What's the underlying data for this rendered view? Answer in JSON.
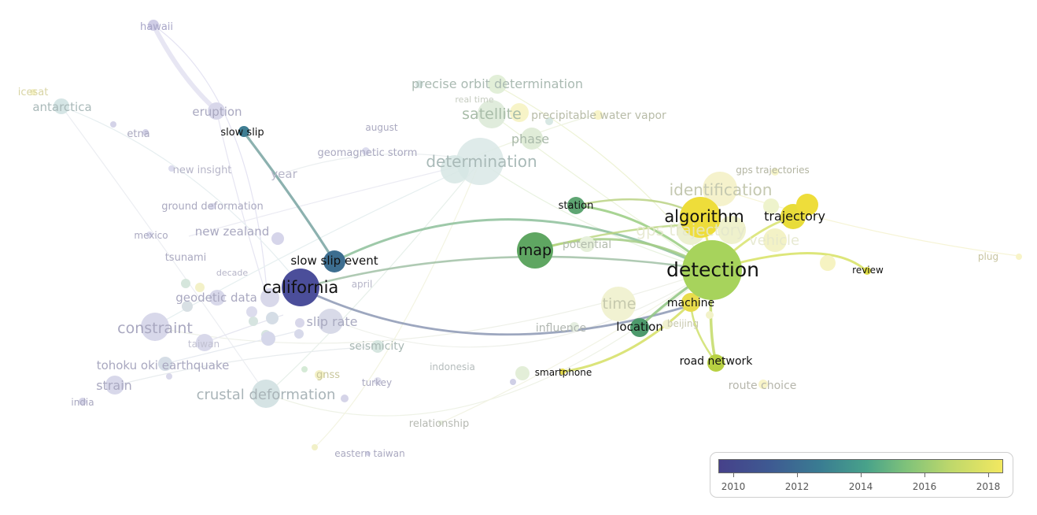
{
  "legend": {
    "ticks": [
      "2010",
      "2012",
      "2014",
      "2016",
      "2018"
    ]
  },
  "nodes": {
    "hawaii": "hawaii",
    "icesat": "icesat",
    "antarctica": "antarctica",
    "eruption": "eruption",
    "slow_slip": "slow slip",
    "etna": "etna",
    "new_insight": "new insight",
    "year": "year",
    "ground_deformation": "ground deformation",
    "new_zealand": "new zealand",
    "mexico": "mexico",
    "tsunami": "tsunami",
    "decade": "decade",
    "slow_slip_event": "slow slip event",
    "california": "california",
    "april": "april",
    "geodetic_data": "geodetic data",
    "constraint": "constraint",
    "slip_rate": "slip rate",
    "taiwan": "taiwan",
    "tohoku_oki_earthquake": "tohoku oki earthquake",
    "strain": "strain",
    "india": "india",
    "crustal_deformation": "crustal deformation",
    "gnss": "gnss",
    "turkey": "turkey",
    "seismicity": "seismicity",
    "indonesia": "indonesia",
    "relationship": "relationship",
    "eastern_taiwan": "eastern taiwan",
    "precise_orbit_determination": "precise orbit determination",
    "real_time": "real time",
    "satellite": "satellite",
    "precipitable_water_vapor": "precipitable water vapor",
    "august": "august",
    "phase": "phase",
    "geomagnetic_storm": "geomagnetic storm",
    "determination": "determination",
    "gps_trajectories": "gps trajectories",
    "identification": "identification",
    "station": "station",
    "algorithm": "algorithm",
    "trajectory": "trajectory",
    "gps_trajectory": "gps trajectory",
    "vehicle": "vehicle",
    "map": "map",
    "potential": "potential",
    "plug": "plug",
    "detection": "detection",
    "review": "review",
    "time": "time",
    "machine": "machine",
    "influence": "influence",
    "location": "location",
    "beijing": "beijing",
    "road_network": "road network",
    "smartphone": "smartphone",
    "route_choice": "route choice"
  },
  "colors": {
    "y2010": "#46418a",
    "y2012": "#3e5a92",
    "y2014": "#3a7d92",
    "y2016": "#7fc27a",
    "y2018": "#f2e860"
  }
}
